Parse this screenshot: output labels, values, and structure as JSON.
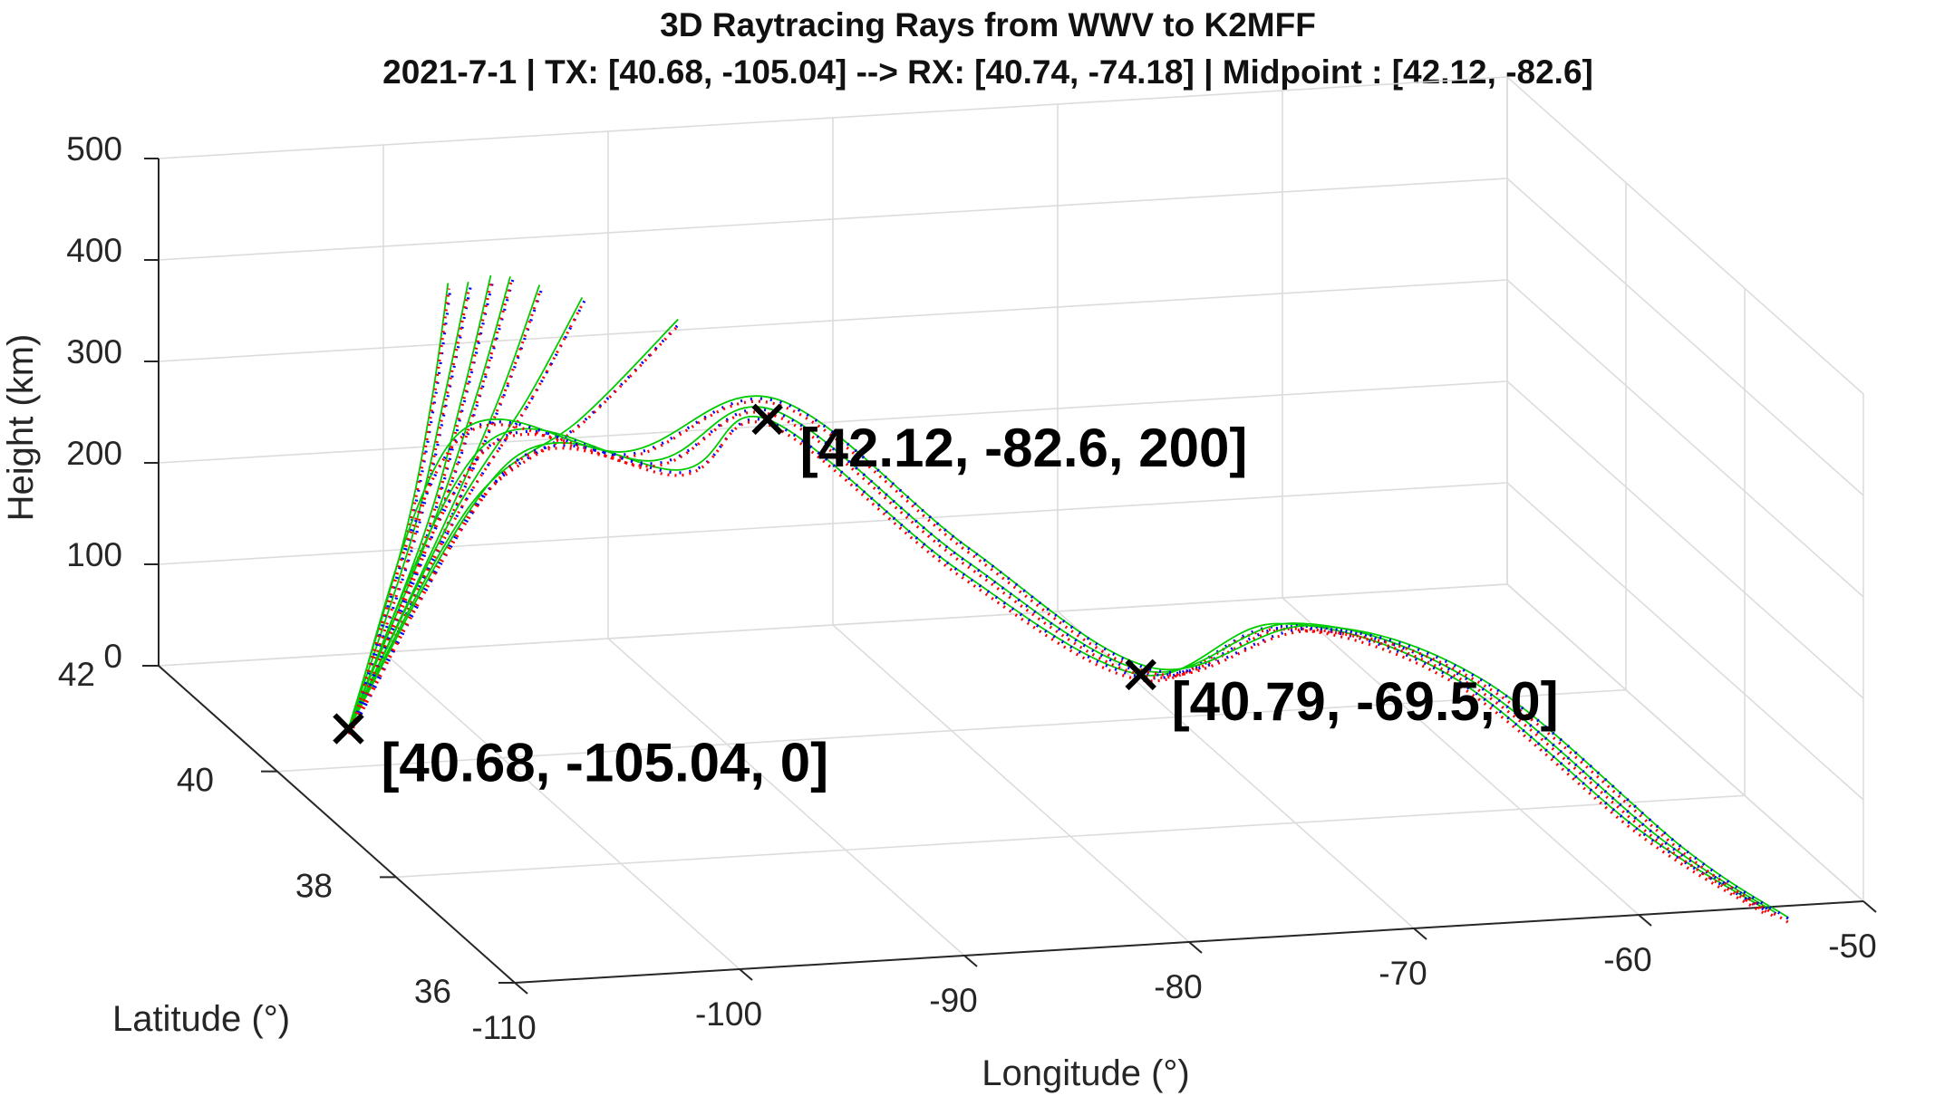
{
  "chart_data": {
    "type": "line",
    "title": "3D Raytracing Rays from WWV to K2MFF",
    "subtitle": "2021-7-1 | TX: [40.68, -105.04] --> RX: [40.74, -74.18] | Midpoint : [42.12, -82.6]",
    "xlabel": "Longitude (°)",
    "ylabel": "Latitude (°)",
    "zlabel": "Height (km)",
    "xlim": [
      -110,
      -50
    ],
    "ylim": [
      36,
      42
    ],
    "zlim": [
      0,
      500
    ],
    "x_ticks": [
      "-110",
      "-100",
      "-90",
      "-80",
      "-70",
      "-60",
      "-50"
    ],
    "y_ticks": [
      "36",
      "38",
      "40",
      "42"
    ],
    "z_ticks": [
      "0",
      "100",
      "200",
      "300",
      "400",
      "500"
    ],
    "grid": true,
    "colors": {
      "red": "#ff0000",
      "blue": "#0000ff",
      "green": "#00cc00",
      "marker": "#000000"
    },
    "escaping_rays": [
      {
        "points": [
          [
            -105.04,
            40.68,
            0
          ],
          [
            -102,
            40.9,
            170
          ],
          [
            -100.5,
            41.0,
            300
          ],
          [
            -99.5,
            41.1,
            410
          ]
        ]
      },
      {
        "points": [
          [
            -105.04,
            40.68,
            0
          ],
          [
            -101.5,
            40.95,
            170
          ],
          [
            -99.8,
            41.05,
            300
          ],
          [
            -98.6,
            41.1,
            410
          ]
        ]
      },
      {
        "points": [
          [
            -105.04,
            40.68,
            0
          ],
          [
            -101,
            40.95,
            170
          ],
          [
            -99,
            41.05,
            300
          ],
          [
            -97.6,
            41.1,
            415
          ]
        ]
      },
      {
        "points": [
          [
            -105.04,
            40.68,
            0
          ],
          [
            -100.5,
            41.0,
            175
          ],
          [
            -98.2,
            41.1,
            300
          ],
          [
            -96.6,
            41.15,
            410
          ]
        ]
      },
      {
        "points": [
          [
            -105.04,
            40.68,
            0
          ],
          [
            -100,
            41.0,
            175
          ],
          [
            -97.2,
            41.1,
            295
          ],
          [
            -95.3,
            41.15,
            400
          ]
        ]
      },
      {
        "points": [
          [
            -105.04,
            40.68,
            0
          ],
          [
            -99.5,
            41.05,
            180
          ],
          [
            -96,
            41.1,
            290
          ],
          [
            -93.4,
            41.15,
            385
          ]
        ]
      },
      {
        "points": [
          [
            -105.04,
            40.68,
            0
          ],
          [
            -98.5,
            41.1,
            190
          ],
          [
            -93.5,
            41.15,
            265
          ],
          [
            -89,
            41.2,
            355
          ]
        ]
      }
    ],
    "hop_rays": [
      {
        "points": [
          [
            -105.04,
            40.68,
            0
          ],
          [
            -95,
            41.7,
            200
          ],
          [
            -88,
            41.5,
            190
          ],
          [
            -82.6,
            42.12,
            200
          ],
          [
            -76,
            41.4,
            80
          ],
          [
            -69.5,
            40.79,
            0
          ],
          [
            -65,
            40.2,
            75
          ],
          [
            -60,
            39.2,
            70
          ],
          [
            -56,
            37.5,
            0
          ],
          [
            -54.5,
            36.0,
            0
          ]
        ]
      },
      {
        "points": [
          [
            -105.04,
            40.68,
            0
          ],
          [
            -96,
            41.8,
            210
          ],
          [
            -89,
            41.6,
            195
          ],
          [
            -82.2,
            42.2,
            205
          ],
          [
            -75.5,
            41.5,
            85
          ],
          [
            -69.1,
            40.85,
            0
          ],
          [
            -64.5,
            40.1,
            80
          ],
          [
            -59.5,
            39.1,
            72
          ],
          [
            -55.5,
            37.3,
            0
          ],
          [
            -54.2,
            35.9,
            0
          ]
        ]
      },
      {
        "points": [
          [
            -105.04,
            40.68,
            0
          ],
          [
            -97,
            41.9,
            215
          ],
          [
            -90,
            41.7,
            200
          ],
          [
            -81.8,
            42.3,
            210
          ],
          [
            -75,
            41.6,
            90
          ],
          [
            -68.7,
            40.9,
            0
          ],
          [
            -64,
            40.0,
            82
          ],
          [
            -59,
            39.0,
            74
          ],
          [
            -55,
            37.1,
            0
          ],
          [
            -53.9,
            35.8,
            0
          ]
        ]
      }
    ],
    "markers": [
      {
        "label": "[40.68, -105.04, 0]",
        "point": [
          -105.04,
          40.68,
          0
        ]
      },
      {
        "label": "[42.12, -82.6, 200]",
        "point": [
          -82.6,
          42.12,
          200
        ]
      },
      {
        "label": "[40.79, -69.5, 0]",
        "point": [
          -69.5,
          40.79,
          0
        ]
      }
    ]
  }
}
